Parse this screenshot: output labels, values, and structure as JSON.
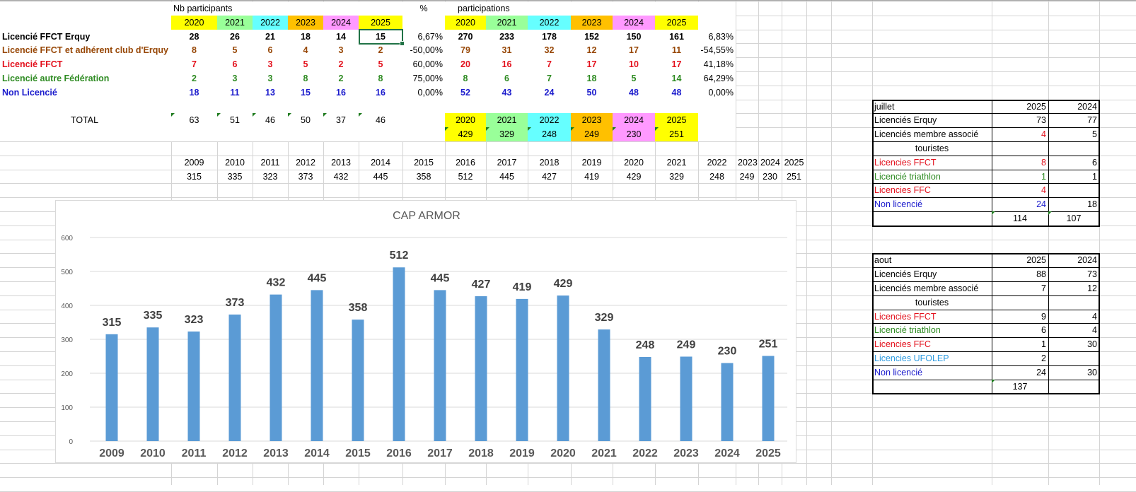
{
  "colors": {
    "y2020": "#ffff00",
    "y2021": "#99ff99",
    "y2022": "#66ffff",
    "y2023": "#ffc000",
    "y2024": "#ff99ff",
    "y2025": "#ffff00",
    "black": "#000000",
    "brown": "#974706",
    "red": "#e3101c",
    "green": "#2e8b22",
    "blue": "#1a1acc",
    "lightblue": "#2e9be0",
    "bar": "#5b9bd5"
  },
  "participants": {
    "title": "Nb participants",
    "pct_header": "%",
    "years": [
      "2020",
      "2021",
      "2022",
      "2023",
      "2024",
      "2025"
    ],
    "rows": [
      {
        "label": "Licencié FFCT Erquy",
        "color": "black",
        "values": [
          "28",
          "26",
          "21",
          "18",
          "14",
          "15"
        ],
        "pct": "6,67%"
      },
      {
        "label": "Licencié FFCT et adhérent club d'Erquy",
        "color": "brown",
        "values": [
          "8",
          "5",
          "6",
          "4",
          "3",
          "2"
        ],
        "pct": "-50,00%"
      },
      {
        "label": "Licencié FFCT",
        "color": "red",
        "values": [
          "7",
          "6",
          "3",
          "5",
          "2",
          "5"
        ],
        "pct": "60,00%"
      },
      {
        "label": "Licencié autre Fédération",
        "color": "green",
        "values": [
          "2",
          "3",
          "3",
          "8",
          "2",
          "8"
        ],
        "pct": "75,00%"
      },
      {
        "label": "Non Licencié",
        "color": "blue",
        "values": [
          "18",
          "11",
          "13",
          "15",
          "16",
          "16"
        ],
        "pct": "0,00%"
      }
    ],
    "total_label": "TOTAL",
    "totals": [
      "63",
      "51",
      "46",
      "50",
      "37",
      "46"
    ]
  },
  "participations": {
    "title": "participations",
    "years": [
      "2020",
      "2021",
      "2022",
      "2023",
      "2024",
      "2025"
    ],
    "rows": [
      {
        "color": "black",
        "values": [
          "270",
          "233",
          "178",
          "152",
          "150",
          "161"
        ],
        "pct": "6,83%"
      },
      {
        "color": "brown",
        "values": [
          "79",
          "31",
          "32",
          "12",
          "17",
          "11"
        ],
        "pct": "-54,55%"
      },
      {
        "color": "red",
        "values": [
          "20",
          "16",
          "7",
          "17",
          "10",
          "17"
        ],
        "pct": "41,18%"
      },
      {
        "color": "green",
        "values": [
          "8",
          "6",
          "7",
          "18",
          "5",
          "14"
        ],
        "pct": "64,29%"
      },
      {
        "color": "blue",
        "values": [
          "52",
          "43",
          "24",
          "50",
          "48",
          "48"
        ],
        "pct": "0,00%"
      }
    ],
    "totals_years": [
      "2020",
      "2021",
      "2022",
      "2023",
      "2024",
      "2025"
    ],
    "totals": [
      "429",
      "329",
      "248",
      "249",
      "230",
      "251"
    ]
  },
  "history": {
    "years": [
      "2009",
      "2010",
      "2011",
      "2012",
      "2013",
      "2014",
      "2015",
      "2016",
      "2017",
      "2018",
      "2019",
      "2020",
      "2021",
      "2022",
      "2023",
      "2024",
      "2025"
    ],
    "values": [
      "315",
      "335",
      "323",
      "373",
      "432",
      "445",
      "358",
      "512",
      "445",
      "427",
      "419",
      "429",
      "329",
      "248",
      "249",
      "230",
      "251"
    ]
  },
  "juillet": {
    "title": "juillet",
    "cols": [
      "2025",
      "2024"
    ],
    "rows": [
      {
        "label": "Licenciés Erquy",
        "color": "black",
        "v2025": "73",
        "c2025": "black",
        "v2024": "77"
      },
      {
        "label": "Licenciés membre associé",
        "color": "black",
        "v2025": "4",
        "c2025": "red",
        "v2024": "5"
      },
      {
        "label": "touristes",
        "color": "black",
        "center": true,
        "v2025": "",
        "v2024": ""
      },
      {
        "label": "Licencies FFCT",
        "color": "red",
        "v2025": "8",
        "c2025": "red",
        "v2024": "6"
      },
      {
        "label": "Licencié triathlon",
        "color": "green",
        "v2025": "1",
        "c2025": "green",
        "v2024": "1"
      },
      {
        "label": "Licencies FFC",
        "color": "red",
        "v2025": "4",
        "c2025": "red",
        "v2024": ""
      },
      {
        "label": "Non licencié",
        "color": "blue",
        "v2025": "24",
        "c2025": "blue",
        "v2024": "18"
      }
    ],
    "total2025": "114",
    "total2024": "107"
  },
  "aout": {
    "title": "aout",
    "cols": [
      "2025",
      "2024"
    ],
    "rows": [
      {
        "label": "Licenciés Erquy",
        "color": "black",
        "v2025": "88",
        "c2025": "black",
        "v2024": "73"
      },
      {
        "label": "Licenciés membre associé",
        "color": "black",
        "v2025": "7",
        "c2025": "black",
        "v2024": "12"
      },
      {
        "label": "touristes",
        "color": "black",
        "center": true,
        "v2025": "",
        "v2024": ""
      },
      {
        "label": "Licencies FFCT",
        "color": "red",
        "v2025": "9",
        "c2025": "black",
        "v2024": "4"
      },
      {
        "label": "Licencié triathlon",
        "color": "green",
        "v2025": "6",
        "c2025": "black",
        "v2024": "4"
      },
      {
        "label": "Licencies FFC",
        "color": "red",
        "v2025": "1",
        "c2025": "black",
        "v2024": "30"
      },
      {
        "label": "Licencies UFOLEP",
        "color": "lightblue",
        "v2025": "2",
        "c2025": "black",
        "v2024": ""
      },
      {
        "label": "Non licencié",
        "color": "blue",
        "v2025": "24",
        "c2025": "black",
        "v2024": "30"
      }
    ],
    "total2025": "137",
    "total2024": ""
  },
  "chart_data": {
    "type": "bar",
    "title": "CAP ARMOR",
    "categories": [
      "2009",
      "2010",
      "2011",
      "2012",
      "2013",
      "2014",
      "2015",
      "2016",
      "2017",
      "2018",
      "2019",
      "2020",
      "2021",
      "2022",
      "2023",
      "2024",
      "2025"
    ],
    "values": [
      315,
      335,
      323,
      373,
      432,
      445,
      358,
      512,
      445,
      427,
      419,
      429,
      329,
      248,
      249,
      230,
      251
    ],
    "yticks": [
      "0",
      "100",
      "200",
      "300",
      "400",
      "500",
      "600"
    ],
    "ylim": [
      0,
      600
    ],
    "xlabel": "",
    "ylabel": "",
    "grid": true,
    "data_labels": true
  }
}
